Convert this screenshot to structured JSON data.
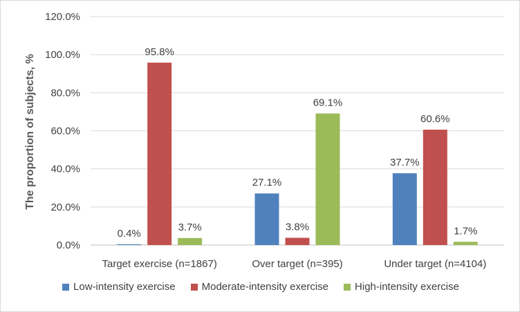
{
  "chart_data": {
    "type": "bar",
    "title": "",
    "xlabel": "",
    "ylabel": "The proportion of subjects, %",
    "ylim": [
      0,
      120
    ],
    "y_ticks": [
      "0.0%",
      "20.0%",
      "40.0%",
      "60.0%",
      "80.0%",
      "100.0%",
      "120.0%"
    ],
    "y_tick_values": [
      0,
      20,
      40,
      60,
      80,
      100,
      120
    ],
    "categories": [
      "Target exercise (n=1867)",
      "Over target (n=395)",
      "Under target (n=4104)"
    ],
    "series": [
      {
        "name": "Low-intensity exercise",
        "color": "#4f81bd",
        "values": [
          0.4,
          27.1,
          37.7
        ],
        "labels": [
          "0.4%",
          "27.1%",
          "37.7%"
        ]
      },
      {
        "name": "Moderate-intensity exercise",
        "color": "#c0504d",
        "values": [
          95.8,
          3.8,
          60.6
        ],
        "labels": [
          "95.8%",
          "3.8%",
          "60.6%"
        ]
      },
      {
        "name": "High-intensity exercise",
        "color": "#9bbb59",
        "values": [
          3.7,
          69.1,
          1.7
        ],
        "labels": [
          "3.7%",
          "69.1%",
          "1.7%"
        ]
      }
    ],
    "grid": true,
    "legend_position": "bottom"
  }
}
